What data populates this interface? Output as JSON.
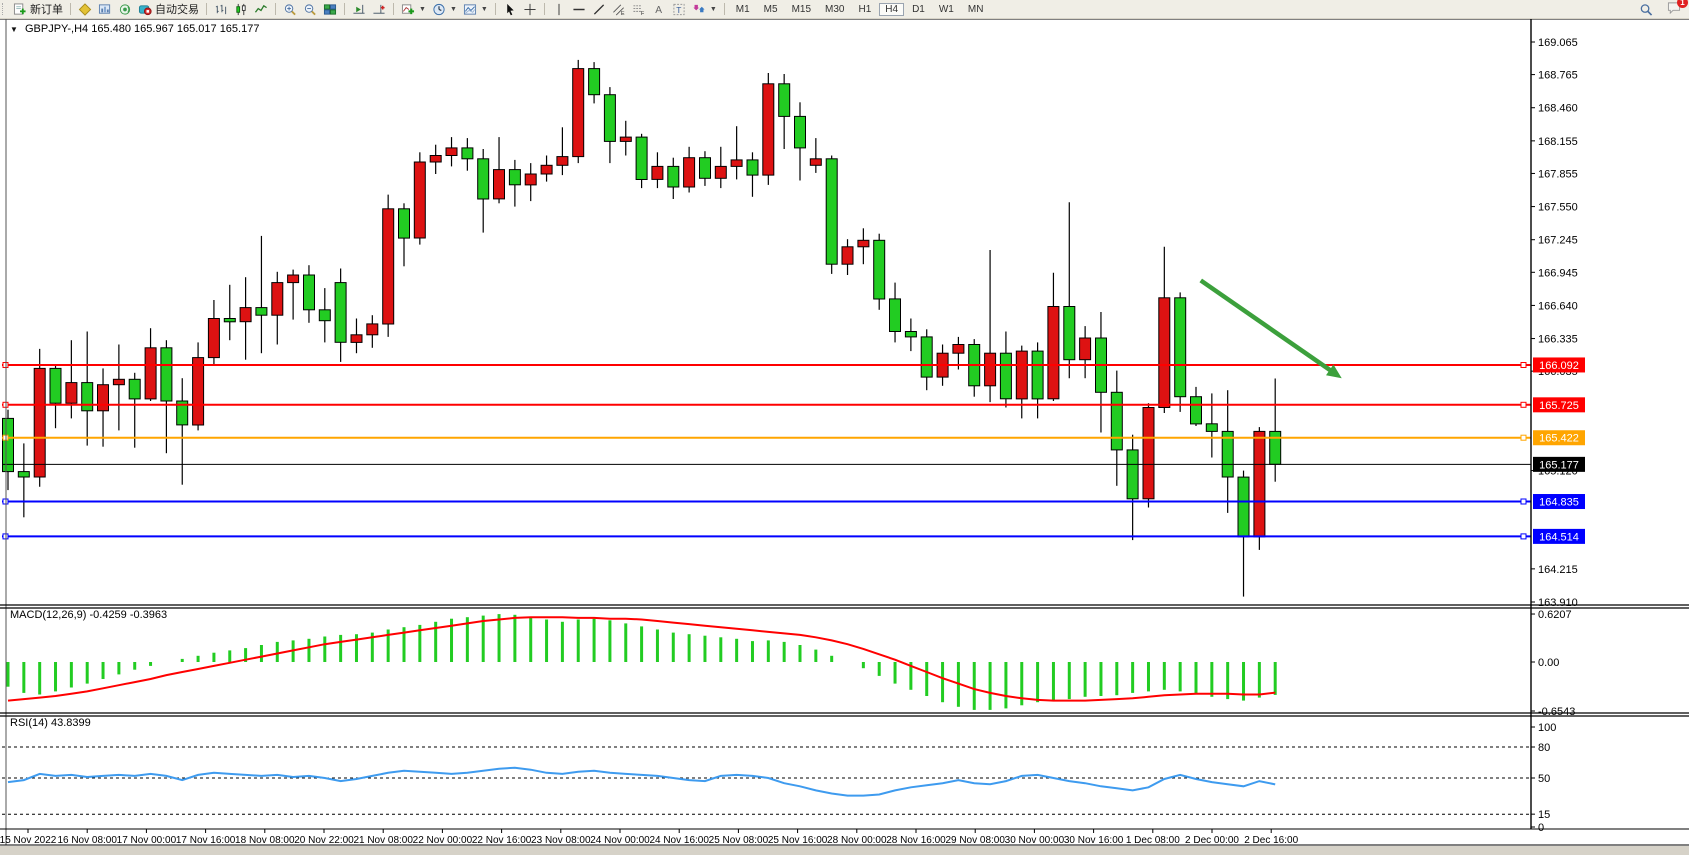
{
  "toolbar": {
    "new_order_label": "新订单",
    "autotrade_label": "自动交易",
    "timeframes": [
      "M1",
      "M5",
      "M15",
      "M30",
      "H1",
      "H4",
      "D1",
      "W1",
      "MN"
    ],
    "active_timeframe": "H4",
    "notification_badge": "1"
  },
  "chart": {
    "title_symbol": "GBPJPY-,H4",
    "title_ohlc": "165.480 165.967 165.017 165.177"
  },
  "indicators": {
    "macd_label": "MACD(12,26,9)",
    "macd_values": "-0.4259 -0.3963",
    "rsi_label": "RSI(14)",
    "rsi_value": "43.8399"
  },
  "chart_data": [
    {
      "type": "candlestick",
      "symbol": "GBPJPY-",
      "timeframe": "H4",
      "bull_color": "#dd1212",
      "bear_color": "#22cc22",
      "ylim": [
        163.91,
        169.065
      ],
      "yticks": [
        {
          "label": "169.065",
          "value": 169.065
        },
        {
          "label": "168.765",
          "value": 168.765
        },
        {
          "label": "168.460",
          "value": 168.46
        },
        {
          "label": "168.155",
          "value": 168.155
        },
        {
          "label": "167.855",
          "value": 167.855
        },
        {
          "label": "167.550",
          "value": 167.55
        },
        {
          "label": "167.245",
          "value": 167.245
        },
        {
          "label": "166.945",
          "value": 166.945
        },
        {
          "label": "166.640",
          "value": 166.64
        },
        {
          "label": "166.335",
          "value": 166.335
        },
        {
          "label": "166.035",
          "value": 166.035
        },
        {
          "label": "165.120",
          "value": 165.12
        },
        {
          "label": "164.215",
          "value": 164.215
        },
        {
          "label": "163.910",
          "value": 163.91
        }
      ],
      "hlines": [
        {
          "price": 166.092,
          "label": "166.092",
          "color": "#ff0000",
          "width": 2,
          "handles": true
        },
        {
          "price": 165.725,
          "label": "165.725",
          "color": "#ff0000",
          "width": 2,
          "handles": true
        },
        {
          "price": 165.422,
          "label": "165.422",
          "color": "#ffa500",
          "width": 2,
          "handles": true
        },
        {
          "price": 165.177,
          "label": "165.177",
          "color": "#000000",
          "width": 1,
          "handles": false
        },
        {
          "price": 164.835,
          "label": "164.835",
          "color": "#0000ff",
          "width": 2,
          "handles": true
        },
        {
          "price": 164.514,
          "label": "164.514",
          "color": "#0000ff",
          "width": 2,
          "handles": true
        }
      ],
      "arrow": {
        "from_bar": 75.3,
        "from_price": 166.87,
        "to_bar": 84.2,
        "to_price": 165.97,
        "color": "#3ca03c"
      },
      "time_labels": [
        "15 Nov 2022",
        "16 Nov 08:00",
        "17 Nov 00:00",
        "17 Nov 16:00",
        "18 Nov 08:00",
        "20 Nov 22:00",
        "21 Nov 08:00",
        "22 Nov 00:00",
        "22 Nov 16:00",
        "23 Nov 08:00",
        "24 Nov 00:00",
        "24 Nov 16:00",
        "25 Nov 08:00",
        "25 Nov 16:00",
        "28 Nov 00:00",
        "28 Nov 16:00",
        "29 Nov 08:00",
        "30 Nov 00:00",
        "30 Nov 16:00",
        "1 Dec 08:00",
        "2 Dec 00:00",
        "2 Dec 16:00"
      ],
      "candles": [
        [
          165.6,
          165.68,
          164.94,
          165.11
        ],
        [
          165.11,
          165.37,
          164.69,
          165.06
        ],
        [
          165.06,
          166.24,
          164.97,
          166.06
        ],
        [
          166.06,
          166.1,
          165.51,
          165.74
        ],
        [
          165.74,
          166.32,
          165.6,
          165.93
        ],
        [
          165.93,
          166.4,
          165.35,
          165.67
        ],
        [
          165.67,
          166.06,
          165.34,
          165.91
        ],
        [
          165.91,
          166.28,
          165.49,
          165.96
        ],
        [
          165.96,
          166.02,
          165.33,
          165.78
        ],
        [
          165.78,
          166.43,
          165.76,
          166.25
        ],
        [
          166.25,
          166.32,
          165.28,
          165.76
        ],
        [
          165.76,
          165.97,
          164.99,
          165.54
        ],
        [
          165.54,
          166.3,
          165.49,
          166.16
        ],
        [
          166.16,
          166.69,
          166.1,
          166.52
        ],
        [
          166.52,
          166.83,
          166.32,
          166.49
        ],
        [
          166.49,
          166.9,
          166.14,
          166.62
        ],
        [
          166.62,
          167.28,
          166.2,
          166.55
        ],
        [
          166.55,
          166.95,
          166.28,
          166.85
        ],
        [
          166.85,
          166.97,
          166.51,
          166.92
        ],
        [
          166.92,
          167.01,
          166.48,
          166.6
        ],
        [
          166.6,
          166.8,
          166.3,
          166.5
        ],
        [
          166.85,
          166.98,
          166.12,
          166.3
        ],
        [
          166.3,
          166.52,
          166.2,
          166.37
        ],
        [
          166.37,
          166.55,
          166.25,
          166.47
        ],
        [
          166.47,
          167.66,
          166.35,
          167.53
        ],
        [
          167.53,
          167.58,
          167.0,
          167.26
        ],
        [
          167.26,
          168.05,
          167.2,
          167.96
        ],
        [
          167.96,
          168.12,
          167.85,
          168.02
        ],
        [
          168.02,
          168.19,
          167.92,
          168.09
        ],
        [
          168.09,
          168.18,
          167.88,
          167.99
        ],
        [
          167.99,
          168.08,
          167.31,
          167.62
        ],
        [
          167.62,
          168.19,
          167.58,
          167.89
        ],
        [
          167.89,
          167.98,
          167.55,
          167.75
        ],
        [
          167.75,
          167.95,
          167.6,
          167.85
        ],
        [
          167.85,
          168.02,
          167.78,
          167.93
        ],
        [
          167.93,
          168.28,
          167.84,
          168.01
        ],
        [
          168.01,
          168.9,
          167.95,
          168.82
        ],
        [
          168.82,
          168.88,
          168.5,
          168.58
        ],
        [
          168.58,
          168.65,
          167.95,
          168.15
        ],
        [
          168.15,
          168.34,
          168.02,
          168.19
        ],
        [
          168.19,
          168.22,
          167.72,
          167.8
        ],
        [
          167.8,
          168.05,
          167.72,
          167.92
        ],
        [
          167.92,
          168.0,
          167.62,
          167.73
        ],
        [
          167.73,
          168.1,
          167.68,
          168.0
        ],
        [
          168.0,
          168.06,
          167.74,
          167.81
        ],
        [
          167.81,
          168.1,
          167.72,
          167.92
        ],
        [
          167.92,
          168.29,
          167.8,
          167.98
        ],
        [
          167.98,
          168.05,
          167.64,
          167.84
        ],
        [
          167.84,
          168.78,
          167.75,
          168.68
        ],
        [
          168.68,
          168.77,
          168.08,
          168.38
        ],
        [
          168.38,
          168.51,
          167.79,
          168.09
        ],
        [
          167.93,
          168.18,
          167.86,
          167.99
        ],
        [
          167.99,
          168.02,
          166.93,
          167.02
        ],
        [
          167.02,
          167.25,
          166.92,
          167.18
        ],
        [
          167.18,
          167.35,
          167.02,
          167.24
        ],
        [
          167.24,
          167.3,
          166.6,
          166.7
        ],
        [
          166.7,
          166.85,
          166.3,
          166.4
        ],
        [
          166.4,
          166.52,
          166.22,
          166.35
        ],
        [
          166.35,
          166.42,
          165.86,
          165.98
        ],
        [
          165.98,
          166.28,
          165.9,
          166.2
        ],
        [
          166.2,
          166.35,
          166.05,
          166.28
        ],
        [
          166.28,
          166.33,
          165.8,
          165.9
        ],
        [
          165.9,
          167.15,
          165.75,
          166.2
        ],
        [
          166.2,
          166.4,
          165.7,
          165.78
        ],
        [
          165.78,
          166.27,
          165.6,
          166.22
        ],
        [
          166.22,
          166.3,
          165.6,
          165.78
        ],
        [
          165.78,
          166.94,
          165.76,
          166.63
        ],
        [
          166.63,
          167.59,
          165.97,
          166.14
        ],
        [
          166.14,
          166.45,
          165.97,
          166.34
        ],
        [
          166.34,
          166.58,
          165.47,
          165.84
        ],
        [
          165.84,
          166.04,
          164.98,
          165.31
        ],
        [
          165.31,
          165.45,
          164.48,
          164.86
        ],
        [
          164.86,
          165.74,
          164.78,
          165.7
        ],
        [
          165.7,
          167.18,
          165.65,
          166.71
        ],
        [
          166.71,
          166.76,
          165.66,
          165.8
        ],
        [
          165.8,
          165.89,
          165.53,
          165.55
        ],
        [
          165.55,
          165.83,
          165.24,
          165.48
        ],
        [
          165.48,
          165.86,
          164.73,
          165.06
        ],
        [
          165.06,
          165.12,
          163.96,
          164.51
        ],
        [
          164.51,
          165.52,
          164.39,
          165.48
        ],
        [
          165.48,
          165.967,
          165.017,
          165.177
        ]
      ]
    },
    {
      "type": "bar",
      "name": "MACD",
      "params": "12,26,9",
      "ylim": [
        -0.6543,
        0.6207
      ],
      "yticks": [
        {
          "label": "0.6207",
          "value": 0.6207
        },
        {
          "label": "0.00",
          "value": 0.0
        },
        {
          "label": "-0.6543",
          "value": -0.6543
        }
      ],
      "bar_color": "#22cc22",
      "signal_color": "#ff0000",
      "values": [
        -0.32,
        -0.4,
        -0.42,
        -0.38,
        -0.33,
        -0.28,
        -0.22,
        -0.16,
        -0.1,
        -0.05,
        0.0,
        0.04,
        0.08,
        0.12,
        0.15,
        0.18,
        0.22,
        0.26,
        0.28,
        0.3,
        0.33,
        0.35,
        0.36,
        0.38,
        0.42,
        0.45,
        0.48,
        0.52,
        0.56,
        0.58,
        0.6,
        0.62,
        0.61,
        0.58,
        0.55,
        0.52,
        0.55,
        0.56,
        0.54,
        0.5,
        0.46,
        0.42,
        0.38,
        0.36,
        0.34,
        0.32,
        0.3,
        0.27,
        0.28,
        0.26,
        0.22,
        0.16,
        0.08,
        0.0,
        -0.08,
        -0.18,
        -0.28,
        -0.36,
        -0.44,
        -0.52,
        -0.58,
        -0.62,
        -0.62,
        -0.6,
        -0.56,
        -0.52,
        -0.5,
        -0.48,
        -0.45,
        -0.44,
        -0.43,
        -0.4,
        -0.38,
        -0.36,
        -0.38,
        -0.42,
        -0.45,
        -0.48,
        -0.5,
        -0.46,
        -0.4259
      ],
      "signal": [
        -0.5,
        -0.48,
        -0.46,
        -0.44,
        -0.41,
        -0.38,
        -0.34,
        -0.3,
        -0.26,
        -0.22,
        -0.17,
        -0.13,
        -0.09,
        -0.05,
        -0.01,
        0.03,
        0.07,
        0.11,
        0.15,
        0.19,
        0.23,
        0.26,
        0.29,
        0.32,
        0.35,
        0.38,
        0.41,
        0.44,
        0.47,
        0.5,
        0.53,
        0.55,
        0.57,
        0.58,
        0.58,
        0.58,
        0.57,
        0.57,
        0.56,
        0.56,
        0.55,
        0.53,
        0.51,
        0.49,
        0.47,
        0.45,
        0.43,
        0.41,
        0.39,
        0.37,
        0.35,
        0.32,
        0.28,
        0.23,
        0.17,
        0.1,
        0.03,
        -0.05,
        -0.13,
        -0.21,
        -0.28,
        -0.35,
        -0.4,
        -0.44,
        -0.47,
        -0.49,
        -0.5,
        -0.5,
        -0.5,
        -0.49,
        -0.48,
        -0.47,
        -0.45,
        -0.43,
        -0.42,
        -0.41,
        -0.41,
        -0.41,
        -0.42,
        -0.42,
        -0.3963
      ]
    },
    {
      "type": "line",
      "name": "RSI",
      "params": "14",
      "ylim": [
        0,
        100
      ],
      "yticks": [
        {
          "label": "100",
          "value": 100
        },
        {
          "label": "80",
          "value": 80
        },
        {
          "label": "50",
          "value": 50
        },
        {
          "label": "15",
          "value": 15
        },
        {
          "label": "0",
          "value": 0
        }
      ],
      "levels": [
        80,
        50,
        15
      ],
      "line_color": "#3e9bef",
      "values": [
        46,
        48,
        54,
        52,
        53,
        51,
        52,
        53,
        52,
        54,
        52,
        48,
        53,
        55,
        54,
        53,
        52,
        53,
        51,
        52,
        50,
        47,
        49,
        52,
        55,
        57,
        56,
        55,
        54,
        55,
        57,
        59,
        60,
        58,
        55,
        54,
        56,
        57,
        55,
        54,
        53,
        52,
        50,
        48,
        47,
        52,
        53,
        52,
        50,
        45,
        42,
        38,
        35,
        33,
        33,
        34,
        38,
        41,
        43,
        45,
        48,
        45,
        44,
        47,
        52,
        53,
        50,
        47,
        45,
        42,
        40,
        38,
        41,
        49,
        53,
        49,
        46,
        44,
        42,
        47,
        43.84
      ]
    }
  ]
}
